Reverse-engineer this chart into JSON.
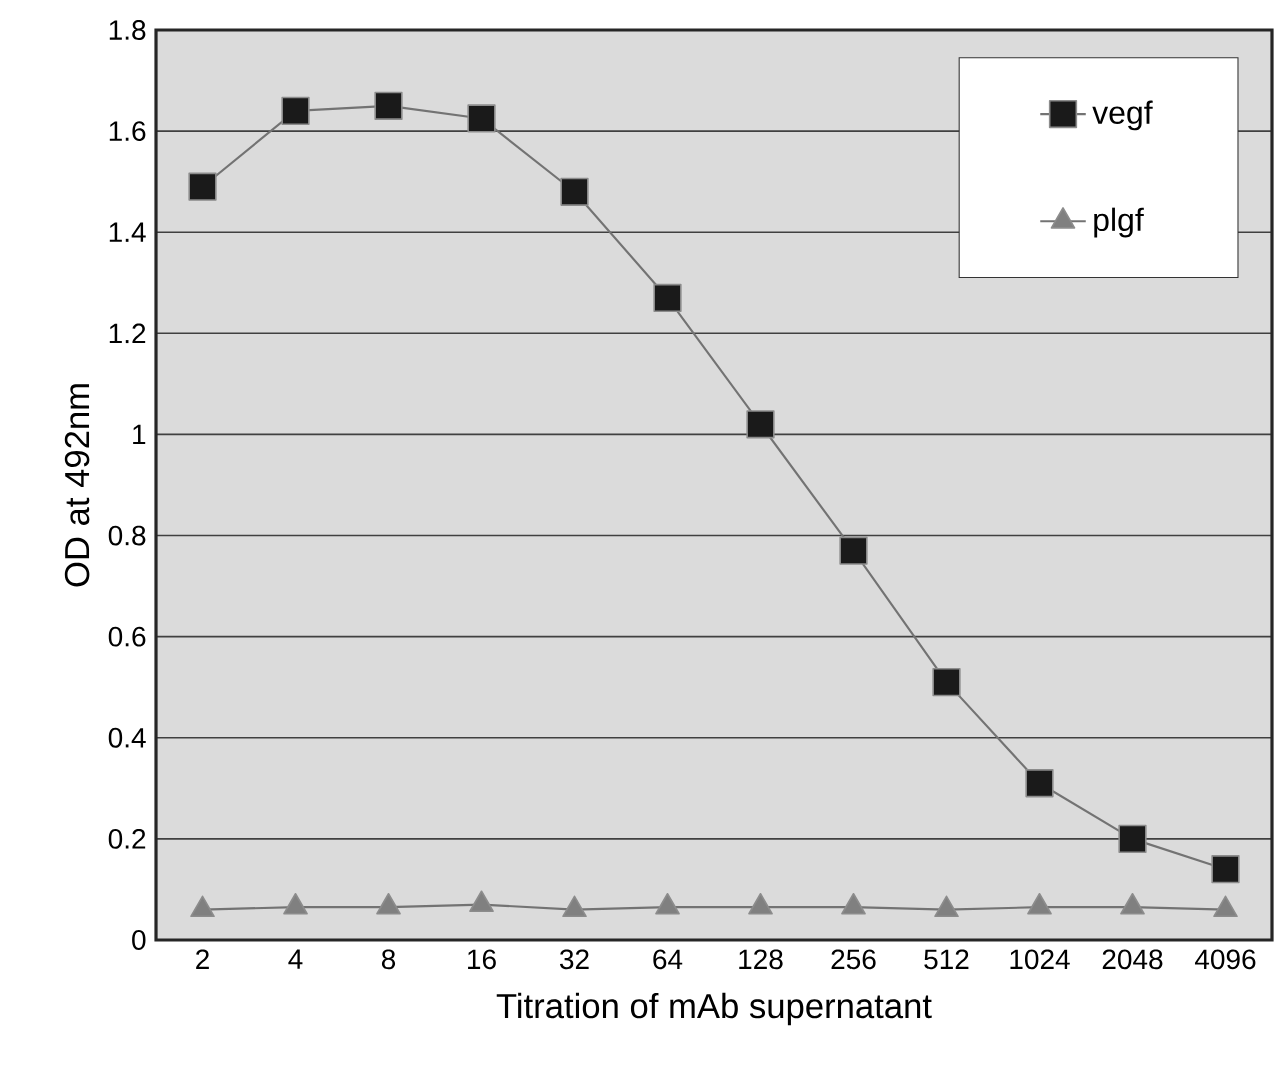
{
  "chart_data": {
    "type": "line",
    "xlabel": "Titration of mAb supernatant",
    "ylabel": "OD at 492nm",
    "categories": [
      "2",
      "4",
      "8",
      "16",
      "32",
      "64",
      "128",
      "256",
      "512",
      "1024",
      "2048",
      "4096"
    ],
    "series": [
      {
        "name": "vegf",
        "color": "#1a1a1a",
        "marker": "square",
        "values": [
          1.49,
          1.64,
          1.65,
          1.625,
          1.48,
          1.27,
          1.02,
          0.77,
          0.51,
          0.31,
          0.2,
          0.14
        ]
      },
      {
        "name": "plgf",
        "color": "#808080",
        "marker": "triangle",
        "values": [
          0.06,
          0.065,
          0.065,
          0.07,
          0.06,
          0.065,
          0.065,
          0.065,
          0.06,
          0.065,
          0.065,
          0.06
        ]
      }
    ],
    "ylim": [
      0,
      1.8
    ],
    "yticks": [
      0,
      0.2,
      0.4,
      0.6,
      0.8,
      1,
      1.2,
      1.4,
      1.6,
      1.8
    ],
    "grid": "y",
    "legend": "top right"
  }
}
